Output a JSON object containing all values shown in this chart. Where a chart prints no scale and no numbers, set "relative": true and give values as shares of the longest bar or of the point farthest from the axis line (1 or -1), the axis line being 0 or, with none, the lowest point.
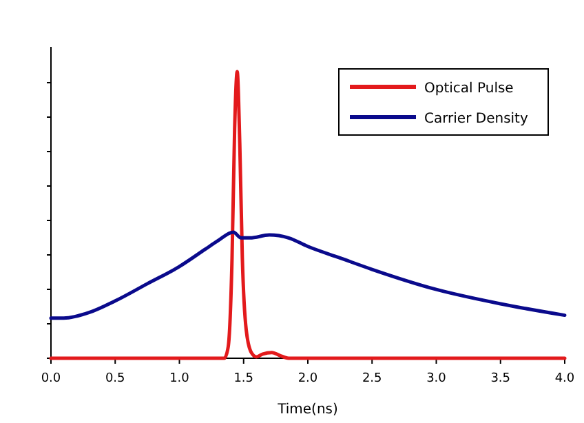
{
  "chart_data": {
    "type": "line",
    "xlabel": "Time(ns)",
    "relative": true,
    "xlim": [
      0,
      4
    ],
    "xticks": [
      {
        "value": 0,
        "label": "0.0"
      },
      {
        "value": 0.5,
        "label": "0.5"
      },
      {
        "value": 1,
        "label": "1.0"
      },
      {
        "value": 1.5,
        "label": "1.5"
      },
      {
        "value": 2,
        "label": "2.0"
      },
      {
        "value": 2.5,
        "label": "2.5"
      },
      {
        "value": 3,
        "label": "3.0"
      },
      {
        "value": 3.5,
        "label": "3.5"
      },
      {
        "value": 4,
        "label": "4.0"
      }
    ],
    "tick_labels": "x",
    "legend": "top right",
    "grid": false,
    "line_style": "solid",
    "series": [
      {
        "name": "Optical Pulse",
        "color": "#e31a1c",
        "x": [
          0,
          1.0,
          1.35,
          1.38,
          1.41,
          1.43,
          1.45,
          1.47,
          1.49,
          1.52,
          1.56,
          1.6,
          1.65,
          1.72,
          1.78,
          1.85,
          2.0,
          3.0,
          4.0
        ],
        "values": [
          0,
          0,
          0,
          0.04,
          0.35,
          0.8,
          1,
          0.75,
          0.35,
          0.1,
          0.02,
          0.005,
          0.015,
          0.02,
          0.01,
          0,
          0,
          0,
          0
        ]
      },
      {
        "name": "Carrier Density",
        "color": "#0a0a8c",
        "x": [
          0,
          0.1,
          0.3,
          0.5,
          0.75,
          1.0,
          1.2,
          1.3,
          1.42,
          1.48,
          1.55,
          1.7,
          1.85,
          2.0,
          2.25,
          2.5,
          3.0,
          3.5,
          4.0
        ],
        "values": [
          0.14,
          0.14,
          0.16,
          0.2,
          0.26,
          0.32,
          0.38,
          0.41,
          0.44,
          0.42,
          0.42,
          0.43,
          0.42,
          0.39,
          0.35,
          0.31,
          0.24,
          0.19,
          0.15
        ]
      }
    ]
  }
}
